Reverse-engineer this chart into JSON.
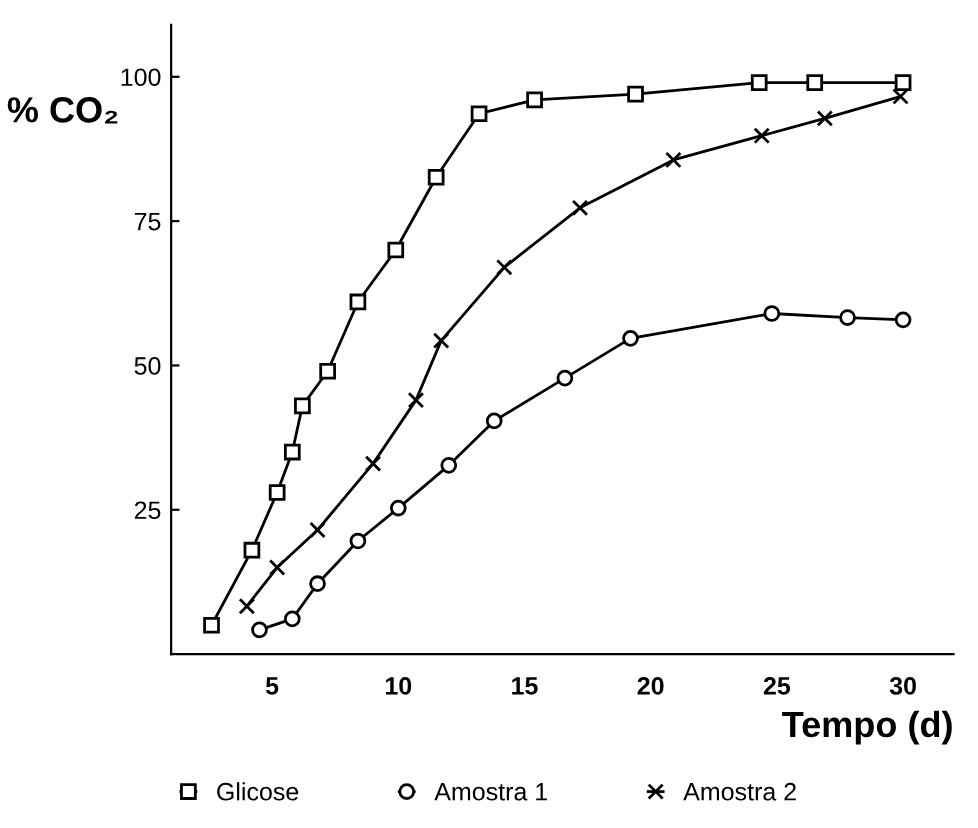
{
  "chart_data": {
    "type": "line",
    "xlabel": "Tempo (d)",
    "ylabel": "% CO₂",
    "xlim": [
      1,
      32
    ],
    "xticks": [
      5,
      10,
      15,
      20,
      25,
      30
    ],
    "ylim": [
      0,
      109
    ],
    "yticks": [
      25,
      50,
      75,
      100
    ],
    "grid": false,
    "legend": "bottom",
    "line_style": "solid",
    "series": [
      {
        "name": "Glicose",
        "color": "#000000",
        "marker": "square",
        "x": [
          2.6,
          4.2,
          5.2,
          5.8,
          6.2,
          7.2,
          8.4,
          9.9,
          11.5,
          13.2,
          15.4,
          19.4,
          24.3,
          26.5,
          30
        ],
        "values": [
          5,
          18,
          28,
          35,
          43,
          49,
          61,
          70,
          82.6,
          93.6,
          96,
          97,
          99,
          99,
          99
        ]
      },
      {
        "name": "Amostra 1",
        "color": "#000000",
        "marker": "circle",
        "x": [
          4.5,
          5.8,
          6.8,
          8.4,
          10,
          12,
          13.8,
          16.6,
          19.2,
          24.8,
          27.8,
          30
        ],
        "values": [
          4.2,
          6.1,
          12.2,
          19.6,
          25.3,
          32.7,
          40.4,
          47.8,
          54.7,
          59,
          58.3,
          57.9
        ]
      },
      {
        "name": "Amostra 2",
        "color": "#000000",
        "marker": "cross",
        "x": [
          4,
          5.2,
          6.8,
          9,
          10.7,
          11.7,
          14.2,
          17.2,
          20.9,
          24.4,
          26.9,
          29.9
        ],
        "values": [
          8.3,
          15,
          21.5,
          33,
          44,
          54.3,
          67,
          77.3,
          85.6,
          89.8,
          92.8,
          96.6
        ]
      }
    ]
  }
}
